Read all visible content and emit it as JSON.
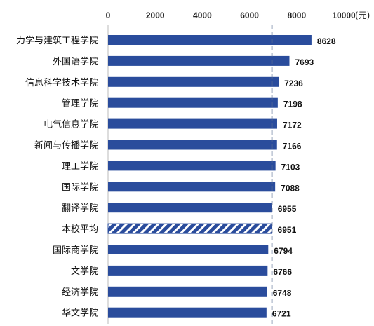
{
  "chart_data": {
    "type": "bar",
    "orientation": "horizontal",
    "unit": "(元)",
    "xlim": [
      0,
      10000
    ],
    "xticks": [
      0,
      2000,
      4000,
      6000,
      8000,
      10000
    ],
    "xtick_labels": [
      "0",
      "2000",
      "4000",
      "6000",
      "8000",
      "10000"
    ],
    "reference_line": {
      "value": 6951,
      "style": "dashed"
    },
    "highlight_category": "本校平均",
    "bar_color": "#2A4C9C",
    "highlight_pattern": "diagonal-stripes",
    "categories": [
      "力学与建筑工程学院",
      "外国语学院",
      "信息科学技术学院",
      "管理学院",
      "电气信息学院",
      "新闻与传播学院",
      "理工学院",
      "国际学院",
      "翻译学院",
      "本校平均",
      "国际商学院",
      "文学院",
      "经济学院",
      "华文学院"
    ],
    "values": [
      8628,
      7693,
      7236,
      7198,
      7172,
      7166,
      7103,
      7088,
      6955,
      6951,
      6794,
      6766,
      6748,
      6721
    ],
    "value_labels": [
      "8628",
      "7693",
      "7236",
      "7198",
      "7172",
      "7166",
      "7103",
      "7088",
      "6955",
      "6951",
      "6794",
      "6766",
      "6748",
      "6721"
    ]
  }
}
